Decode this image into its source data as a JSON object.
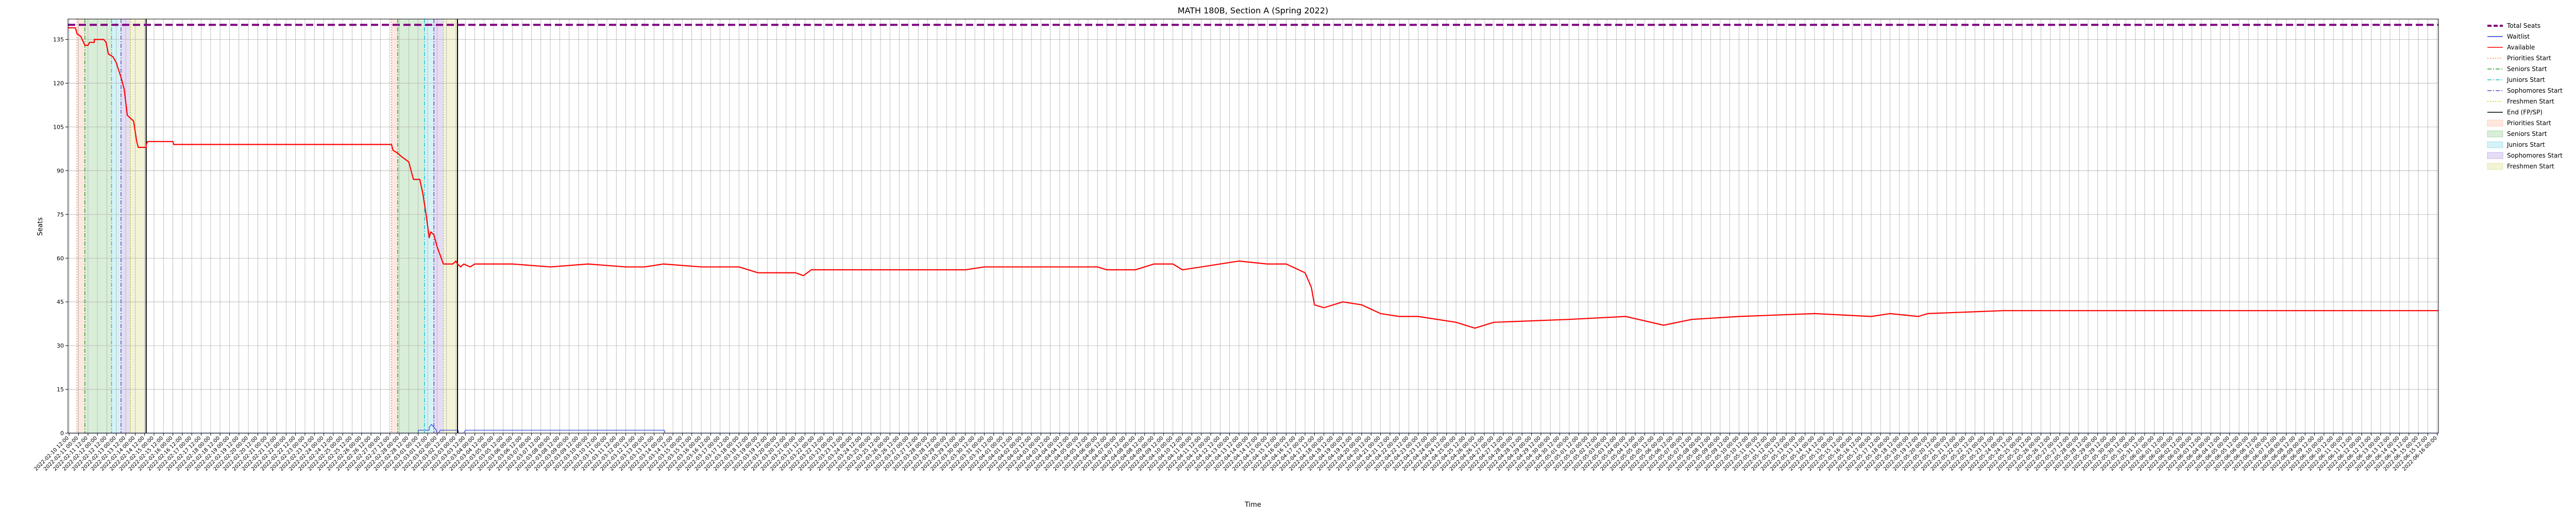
{
  "chart_data": {
    "type": "line",
    "title": "MATH 180B, Section A (Spring 2022)",
    "xlabel": "Time",
    "ylabel": "Seats",
    "ylim": [
      0,
      142
    ],
    "yticks": [
      0,
      15,
      30,
      45,
      60,
      75,
      90,
      105,
      120,
      135
    ],
    "grid": true,
    "legend_position": "outside-right",
    "x_axis": {
      "start": "2022-02-10 10:36",
      "end": "2022-06-16 01:34",
      "tick_every_hours": 12,
      "first_tick": "2022-02-10 12:00"
    },
    "total_seats": 140,
    "colors": {
      "total": "#800080",
      "waitlist": "#1f3fd6",
      "available": "#ff0000",
      "priorities": "#ff7f50",
      "seniors": "#2ca02c",
      "juniors": "#17becf",
      "sophomores": "#6f42c1",
      "freshmen": "#bcbd22",
      "end": "#000000"
    },
    "periods": [
      {
        "priorities": "2022-02-10 22:00",
        "seniors": "2022-02-11 08:00",
        "juniors": "2022-02-12 18:00",
        "sophomores": "2022-02-13 06:00",
        "freshmen": "2022-02-13 18:00",
        "end": "2022-02-14 14:00"
      },
      {
        "priorities": "2022-02-27 14:00",
        "seniors": "2022-02-27 22:00",
        "juniors": "2022-03-01 08:00",
        "sophomores": "2022-03-01 20:00",
        "freshmen": "2022-03-02 08:00",
        "end": "2022-03-03 02:00"
      }
    ],
    "series": [
      {
        "name": "Total Seats",
        "style": "dashed",
        "points": [
          [
            "2022-02-10 10:36",
            140
          ],
          [
            "2022-06-16 01:34",
            140
          ]
        ]
      },
      {
        "name": "Waitlist",
        "style": "solid",
        "points": [
          [
            "2022-02-10 10:36",
            0
          ],
          [
            "2022-03-01 00:00",
            0
          ],
          [
            "2022-03-01 00:00",
            1
          ],
          [
            "2022-03-01 14:00",
            1
          ],
          [
            "2022-03-01 14:00",
            2
          ],
          [
            "2022-03-01 17:00",
            3
          ],
          [
            "2022-03-01 20:00",
            2
          ],
          [
            "2022-03-01 23:00",
            1
          ],
          [
            "2022-03-02 00:00",
            0
          ],
          [
            "2022-03-02 02:00",
            0
          ],
          [
            "2022-03-02 04:00",
            1
          ],
          [
            "2022-03-03 03:00",
            1
          ],
          [
            "2022-03-03 03:00",
            0
          ],
          [
            "2022-03-03 10:00",
            0
          ],
          [
            "2022-03-03 12:00",
            1
          ],
          [
            "2022-03-14 01:00",
            1
          ],
          [
            "2022-03-14 02:00",
            0
          ],
          [
            "2022-06-16 01:34",
            0
          ]
        ]
      },
      {
        "name": "Available",
        "style": "solid",
        "points": [
          [
            "2022-02-10 10:36",
            139
          ],
          [
            "2022-02-10 20:00",
            139
          ],
          [
            "2022-02-10 22:00",
            137
          ],
          [
            "2022-02-11 03:00",
            136
          ],
          [
            "2022-02-11 08:00",
            133
          ],
          [
            "2022-02-11 12:00",
            133
          ],
          [
            "2022-02-11 14:00",
            134
          ],
          [
            "2022-02-11 20:00",
            134
          ],
          [
            "2022-02-11 20:00",
            135
          ],
          [
            "2022-02-12 00:00",
            135
          ],
          [
            "2022-02-12 08:00",
            135
          ],
          [
            "2022-02-12 11:00",
            134
          ],
          [
            "2022-02-12 14:00",
            130
          ],
          [
            "2022-02-12 20:00",
            129
          ],
          [
            "2022-02-13 00:00",
            127
          ],
          [
            "2022-02-13 06:00",
            122
          ],
          [
            "2022-02-13 10:00",
            118
          ],
          [
            "2022-02-13 14:00",
            109
          ],
          [
            "2022-02-13 18:00",
            108
          ],
          [
            "2022-02-13 22:00",
            107
          ],
          [
            "2022-02-14 02:00",
            100
          ],
          [
            "2022-02-14 04:00",
            98
          ],
          [
            "2022-02-14 14:00",
            98
          ],
          [
            "2022-02-14 14:00",
            99
          ],
          [
            "2022-02-14 16:00",
            100
          ],
          [
            "2022-02-16 00:00",
            100
          ],
          [
            "2022-02-16 01:00",
            99
          ],
          [
            "2022-02-27 14:00",
            99
          ],
          [
            "2022-02-27 16:00",
            97
          ],
          [
            "2022-02-27 22:00",
            96
          ],
          [
            "2022-02-28 02:00",
            95
          ],
          [
            "2022-02-28 12:00",
            93
          ],
          [
            "2022-02-28 18:00",
            87
          ],
          [
            "2022-03-01 02:00",
            87
          ],
          [
            "2022-03-01 06:00",
            82
          ],
          [
            "2022-03-01 10:00",
            75
          ],
          [
            "2022-03-01 14:00",
            67
          ],
          [
            "2022-03-01 16:00",
            69
          ],
          [
            "2022-03-01 20:00",
            68
          ],
          [
            "2022-03-02 00:00",
            64
          ],
          [
            "2022-03-02 04:00",
            61
          ],
          [
            "2022-03-02 08:00",
            58
          ],
          [
            "2022-03-02 20:00",
            58
          ],
          [
            "2022-03-03 00:00",
            59
          ],
          [
            "2022-03-03 02:00",
            58
          ],
          [
            "2022-03-03 06:00",
            57
          ],
          [
            "2022-03-03 10:00",
            58
          ],
          [
            "2022-03-03 18:00",
            57
          ],
          [
            "2022-03-04 00:00",
            58
          ],
          [
            "2022-03-06 00:00",
            58
          ],
          [
            "2022-03-08 00:00",
            57
          ],
          [
            "2022-03-10 00:00",
            58
          ],
          [
            "2022-03-12 00:00",
            57
          ],
          [
            "2022-03-13 00:00",
            57
          ],
          [
            "2022-03-14 00:00",
            58
          ],
          [
            "2022-03-16 00:00",
            57
          ],
          [
            "2022-03-18 00:00",
            57
          ],
          [
            "2022-03-19 00:00",
            55
          ],
          [
            "2022-03-21 00:00",
            55
          ],
          [
            "2022-03-21 10:00",
            54
          ],
          [
            "2022-03-21 20:00",
            56
          ],
          [
            "2022-03-24 00:00",
            56
          ],
          [
            "2022-03-28 00:00",
            56
          ],
          [
            "2022-03-30 00:00",
            56
          ],
          [
            "2022-03-31 00:00",
            57
          ],
          [
            "2022-04-04 00:00",
            57
          ],
          [
            "2022-04-06 00:00",
            57
          ],
          [
            "2022-04-06 12:00",
            56
          ],
          [
            "2022-04-08 00:00",
            56
          ],
          [
            "2022-04-08 12:00",
            57
          ],
          [
            "2022-04-09 00:00",
            58
          ],
          [
            "2022-04-10 00:00",
            58
          ],
          [
            "2022-04-10 12:00",
            56
          ],
          [
            "2022-04-11 12:00",
            57
          ],
          [
            "2022-04-12 12:00",
            58
          ],
          [
            "2022-04-13 12:00",
            59
          ],
          [
            "2022-04-15 00:00",
            58
          ],
          [
            "2022-04-16 00:00",
            58
          ],
          [
            "2022-04-17 00:00",
            55
          ],
          [
            "2022-04-17 08:00",
            50
          ],
          [
            "2022-04-17 12:00",
            44
          ],
          [
            "2022-04-18 00:00",
            43
          ],
          [
            "2022-04-19 00:00",
            45
          ],
          [
            "2022-04-20 00:00",
            44
          ],
          [
            "2022-04-21 00:00",
            41
          ],
          [
            "2022-04-22 00:00",
            40
          ],
          [
            "2022-04-23 00:00",
            40
          ],
          [
            "2022-04-25 00:00",
            38
          ],
          [
            "2022-04-26 00:00",
            36
          ],
          [
            "2022-04-27 00:00",
            38
          ],
          [
            "2022-05-01 00:00",
            39
          ],
          [
            "2022-05-04 00:00",
            40
          ],
          [
            "2022-05-06 00:00",
            37
          ],
          [
            "2022-05-07 12:00",
            39
          ],
          [
            "2022-05-10 00:00",
            40
          ],
          [
            "2022-05-14 00:00",
            41
          ],
          [
            "2022-05-17 00:00",
            40
          ],
          [
            "2022-05-18 00:00",
            41
          ],
          [
            "2022-05-19 12:00",
            40
          ],
          [
            "2022-05-20 00:00",
            41
          ],
          [
            "2022-05-24 00:00",
            42
          ],
          [
            "2022-06-16 01:34",
            42
          ]
        ]
      }
    ],
    "legend": [
      {
        "label": "Total Seats",
        "kind": "line",
        "color": "#800080",
        "dash": "dashed",
        "bold": true
      },
      {
        "label": "Waitlist",
        "kind": "line",
        "color": "#1f3fd6",
        "dash": "solid"
      },
      {
        "label": "Available",
        "kind": "line",
        "color": "#ff0000",
        "dash": "solid"
      },
      {
        "label": "Priorities Start",
        "kind": "line",
        "color": "#ff7f50",
        "dash": "dotted"
      },
      {
        "label": "Seniors Start",
        "kind": "line",
        "color": "#2ca02c",
        "dash": "dashdot"
      },
      {
        "label": "Juniors Start",
        "kind": "line",
        "color": "#17becf",
        "dash": "dashdot"
      },
      {
        "label": "Sophomores Start",
        "kind": "line",
        "color": "#6f42c1",
        "dash": "dashdot"
      },
      {
        "label": "Freshmen Start",
        "kind": "line",
        "color": "#bcbd22",
        "dash": "dotted"
      },
      {
        "label": "End (FP/SP)",
        "kind": "line",
        "color": "#000000",
        "dash": "solid"
      },
      {
        "label": "Priorities Start",
        "kind": "patch",
        "color": "#ff7f50"
      },
      {
        "label": "Seniors Start",
        "kind": "patch",
        "color": "#2ca02c"
      },
      {
        "label": "Juniors Start",
        "kind": "patch",
        "color": "#17becf"
      },
      {
        "label": "Sophomores Start",
        "kind": "patch",
        "color": "#6f42c1"
      },
      {
        "label": "Freshmen Start",
        "kind": "patch",
        "color": "#bcbd22"
      }
    ]
  }
}
